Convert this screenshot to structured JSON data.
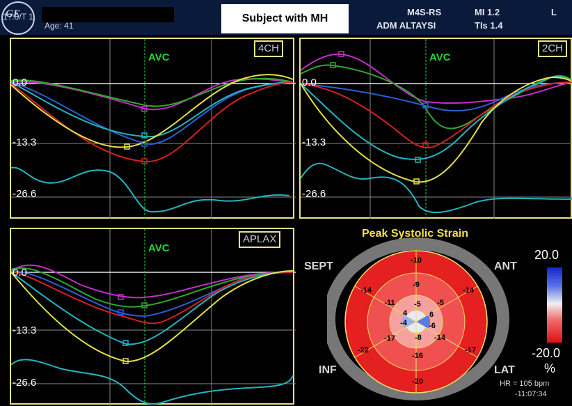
{
  "header": {
    "patient_id": "1?:0/T 1",
    "age": "Age: 41",
    "title": "Subject with MH",
    "probe": "M4S-RS",
    "center": "ADM  ALTAYSI",
    "mi": "MI 1.2",
    "tis": "TIs 1.4",
    "side": "L"
  },
  "panels": {
    "ch4": {
      "view": "4CH",
      "avc": "AVC",
      "y0": "0.0",
      "y1": "-13.3",
      "y2": "-26.6"
    },
    "ch2": {
      "view": "2CH",
      "avc": "AVC",
      "y0": "0.0",
      "y1": "-13.3",
      "y2": "-26.6"
    },
    "aplax": {
      "view": "APLAX",
      "avc": "AVC",
      "y0": "0.0",
      "y1": "-13.3",
      "y2": "-26.6"
    }
  },
  "bullseye": {
    "title": "Peak Systolic Strain",
    "labels": {
      "sept": "SEPT",
      "ant": "ANT",
      "inf": "INF",
      "lat": "LAT"
    },
    "scale": {
      "max": "20.0",
      "min": "-20.0",
      "unit": "%"
    },
    "hr": "HR = 105 bpm",
    "time": "-11:07:34",
    "segments": {
      "outer": [
        "-10",
        "-14",
        "-17",
        "-20",
        "-22",
        "-14"
      ],
      "mid": [
        "-9",
        "-5",
        "-14",
        "-16",
        "-17",
        "-11"
      ],
      "inner": [
        "-5",
        "6",
        "-6",
        "-8",
        "-4",
        "4"
      ]
    }
  },
  "colors": {
    "frame": "#e8e38a",
    "avc": "#27d83a",
    "title": "#f5e14a"
  }
}
